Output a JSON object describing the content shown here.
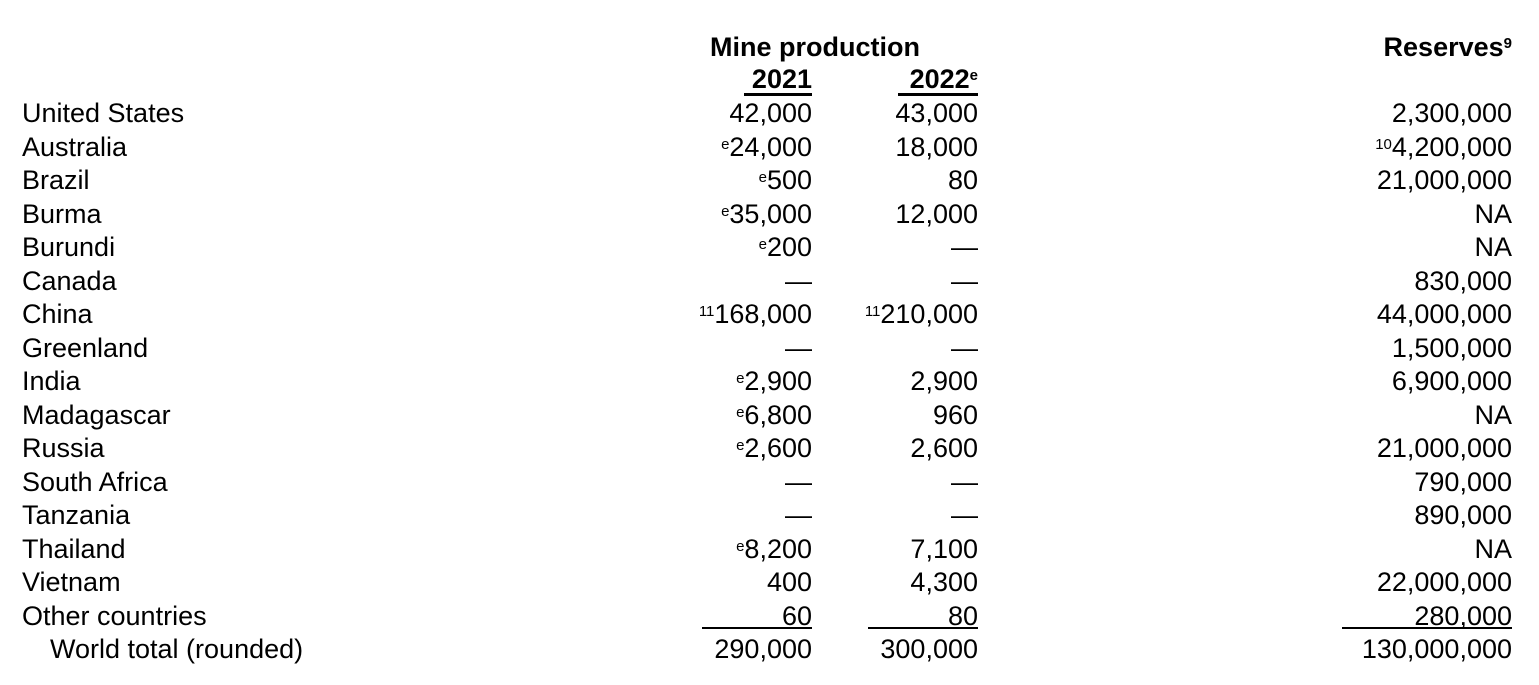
{
  "headers": {
    "mine_production": "Mine production",
    "year_2021": "2021",
    "year_2022": "2022",
    "year_2022_note": "e",
    "reserves": "Reserves",
    "reserves_note": "9"
  },
  "rows": [
    {
      "name": "United States",
      "y2021_note": "",
      "y2021": "42,000",
      "y2022_note": "",
      "y2022": "43,000",
      "res_note": "",
      "reserves": "2,300,000"
    },
    {
      "name": "Australia",
      "y2021_note": "e",
      "y2021": "24,000",
      "y2022_note": "",
      "y2022": "18,000",
      "res_note": "10",
      "reserves": "4,200,000"
    },
    {
      "name": "Brazil",
      "y2021_note": "e",
      "y2021": "500",
      "y2022_note": "",
      "y2022": "80",
      "res_note": "",
      "reserves": "21,000,000"
    },
    {
      "name": "Burma",
      "y2021_note": "e",
      "y2021": "35,000",
      "y2022_note": "",
      "y2022": "12,000",
      "res_note": "",
      "reserves": "NA"
    },
    {
      "name": "Burundi",
      "y2021_note": "e",
      "y2021": "200",
      "y2022_note": "",
      "y2022": "—",
      "res_note": "",
      "reserves": "NA"
    },
    {
      "name": "Canada",
      "y2021_note": "",
      "y2021": "—",
      "y2022_note": "",
      "y2022": "—",
      "res_note": "",
      "reserves": "830,000"
    },
    {
      "name": "China",
      "y2021_note": "11",
      "y2021": "168,000",
      "y2022_note": "11",
      "y2022": "210,000",
      "res_note": "",
      "reserves": "44,000,000"
    },
    {
      "name": "Greenland",
      "y2021_note": "",
      "y2021": "—",
      "y2022_note": "",
      "y2022": "—",
      "res_note": "",
      "reserves": "1,500,000"
    },
    {
      "name": "India",
      "y2021_note": "e",
      "y2021": "2,900",
      "y2022_note": "",
      "y2022": "2,900",
      "res_note": "",
      "reserves": "6,900,000"
    },
    {
      "name": "Madagascar",
      "y2021_note": "e",
      "y2021": "6,800",
      "y2022_note": "",
      "y2022": "960",
      "res_note": "",
      "reserves": "NA"
    },
    {
      "name": "Russia",
      "y2021_note": "e",
      "y2021": "2,600",
      "y2022_note": "",
      "y2022": "2,600",
      "res_note": "",
      "reserves": "21,000,000"
    },
    {
      "name": "South Africa",
      "y2021_note": "",
      "y2021": "—",
      "y2022_note": "",
      "y2022": "—",
      "res_note": "",
      "reserves": "790,000"
    },
    {
      "name": "Tanzania",
      "y2021_note": "",
      "y2021": "—",
      "y2022_note": "",
      "y2022": "—",
      "res_note": "",
      "reserves": "890,000"
    },
    {
      "name": "Thailand",
      "y2021_note": "e",
      "y2021": "8,200",
      "y2022_note": "",
      "y2022": "7,100",
      "res_note": "",
      "reserves": "NA"
    },
    {
      "name": "Vietnam",
      "y2021_note": "",
      "y2021": "400",
      "y2022_note": "",
      "y2022": "4,300",
      "res_note": "",
      "reserves": "22,000,000"
    },
    {
      "name": "Other countries",
      "y2021_note": "",
      "y2021": "60",
      "y2022_note": "",
      "y2022": "80",
      "res_note": "",
      "reserves": "280,000"
    }
  ],
  "total": {
    "name": "World total (rounded)",
    "y2021": "290,000",
    "y2022": "300,000",
    "reserves": "130,000,000"
  }
}
